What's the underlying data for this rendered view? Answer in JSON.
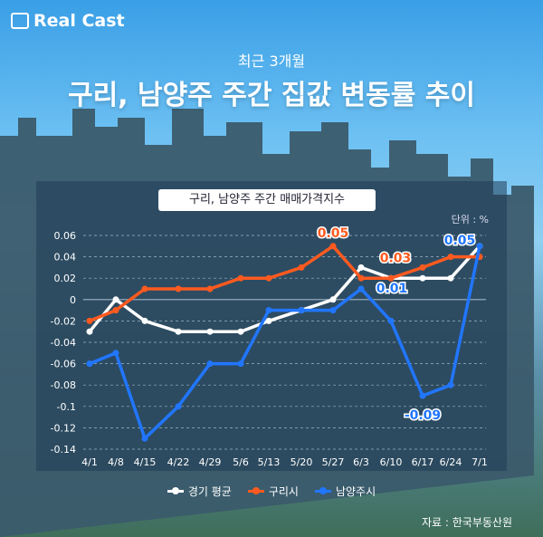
{
  "brand": "Real Cast",
  "subtitle": "최근 3개월",
  "title": "구리, 남양주 주간 집값 변동률 추이",
  "source": "자료 : 한국부동산원",
  "chart_data": {
    "type": "line",
    "title": "구리, 남양주 주간 매매가격지수",
    "unit": "단위 : %",
    "categories": [
      "4/1",
      "4/8",
      "4/15",
      "4/22",
      "4/29",
      "5/6",
      "5/13",
      "5/20",
      "5/27",
      "6/3",
      "6/10",
      "6/17",
      "6/24",
      "7/1"
    ],
    "ylim": [
      -0.14,
      0.06
    ],
    "yticks": [
      "0.06",
      "0.04",
      "0.02",
      "0",
      "-0.02",
      "-0.04",
      "-0.06",
      "-0.08",
      "-0.1",
      "-0.12",
      "-0.14"
    ],
    "grid": true,
    "legend_position": "bottom",
    "series": [
      {
        "name": "경기 평균",
        "color": "#ffffff",
        "values": [
          -0.03,
          0,
          -0.02,
          -0.03,
          -0.03,
          -0.03,
          -0.02,
          -0.01,
          0,
          0.03,
          0.02,
          0.02,
          0.02,
          0.05
        ]
      },
      {
        "name": "구리시",
        "color": "#ff5a1f",
        "values": [
          -0.02,
          -0.01,
          0.01,
          0.01,
          0.01,
          0.02,
          0.02,
          0.03,
          0.05,
          0.02,
          0.02,
          0.03,
          0.04,
          0.04
        ]
      },
      {
        "name": "남양주시",
        "color": "#2176ff",
        "values": [
          -0.06,
          -0.05,
          -0.13,
          -0.1,
          -0.06,
          -0.06,
          -0.01,
          -0.01,
          -0.01,
          0.01,
          -0.02,
          -0.09,
          -0.08,
          0.05
        ]
      }
    ],
    "annotations": [
      {
        "series": 1,
        "index": 8,
        "text": "0.05"
      },
      {
        "series": 1,
        "index": 11,
        "text": "0.03"
      },
      {
        "series": 2,
        "index": 9,
        "text": "0.01"
      },
      {
        "series": 2,
        "index": 11,
        "text": "-0.09"
      },
      {
        "series": 2,
        "index": 13,
        "text": "0.05"
      }
    ]
  }
}
